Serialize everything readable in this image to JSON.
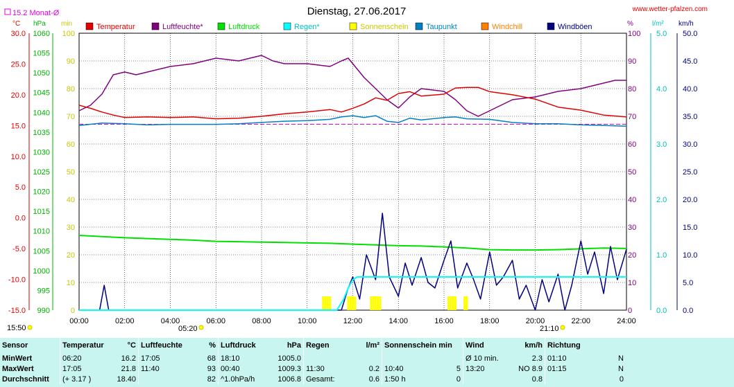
{
  "header": {
    "title": "Dienstag, 27.06.2017",
    "site": "www.wetter-pfalzen.com",
    "monthly_avg": "15.2 Monat-Ø",
    "units_left": [
      "°C",
      "hPa",
      "min"
    ],
    "units_right": [
      "%",
      "l/m²",
      "km/h"
    ],
    "sunrise": "05:20",
    "sunset": "21:10",
    "stamp": "15:50"
  },
  "colors": {
    "temperature": "#e00000",
    "humidity": "#800080",
    "pressure": "#00e000",
    "rain": "#00ffff",
    "sunshine": "#ffff00",
    "dewpoint": "#0080c0",
    "windchill": "#ff8000",
    "gust": "#000080",
    "stats_bg": "#c8f5f0"
  },
  "legend": [
    {
      "label": "Temperatur",
      "color": "#e00000"
    },
    {
      "label": "Luftfeuchte*",
      "color": "#800080"
    },
    {
      "label": "Luftdruck",
      "color": "#00e000"
    },
    {
      "label": "Regen*",
      "color": "#00ffff"
    },
    {
      "label": "Sonnenschein",
      "color": "#ffff00"
    },
    {
      "label": "Taupunkt",
      "color": "#0080c0"
    },
    {
      "label": "Windchill",
      "color": "#ff8000"
    },
    {
      "label": "Windböen",
      "color": "#000080"
    }
  ],
  "chart_data": {
    "type": "line",
    "title": "Dienstag, 27.06.2017",
    "x_ticks": [
      "00:00",
      "02:00",
      "04:00",
      "06:00",
      "08:00",
      "10:00",
      "12:00",
      "14:00",
      "16:00",
      "18:00",
      "20:00",
      "22:00",
      "24:00"
    ],
    "axes": {
      "temp_c": {
        "range": [
          -15,
          30
        ],
        "ticks": [
          "30.0",
          "25.0",
          "20.0",
          "15.0",
          "10.0",
          "5.0",
          "0.0",
          "-5.0",
          "-10.0",
          "-15.0"
        ]
      },
      "pressure_hpa": {
        "range": [
          990,
          1060
        ],
        "ticks": [
          "1060",
          "1055",
          "1050",
          "1045",
          "1040",
          "1035",
          "1030",
          "1025",
          "1020",
          "1015",
          "1010",
          "1005",
          "1000",
          "995",
          "990"
        ]
      },
      "sun_min": {
        "range": [
          0,
          100
        ],
        "ticks": [
          "100",
          "90",
          "80",
          "70",
          "60",
          "50",
          "40",
          "30",
          "20",
          "10",
          "0"
        ]
      },
      "humidity_pct": {
        "range": [
          0,
          100
        ],
        "ticks": [
          "100",
          "90",
          "80",
          "70",
          "60",
          "50",
          "40",
          "30",
          "20",
          "10",
          "0"
        ]
      },
      "rain_lm2": {
        "range": [
          0,
          5
        ],
        "ticks": [
          "5.0",
          "4.0",
          "3.0",
          "2.0",
          "1.0",
          "0.0"
        ]
      },
      "wind_kmh": {
        "range": [
          0,
          50
        ],
        "ticks": [
          "50.0",
          "45.0",
          "40.0",
          "35.0",
          "30.0",
          "25.0",
          "20.0",
          "15.0",
          "10.0",
          "5.0",
          "0.0"
        ]
      }
    },
    "monthly_avg_temp": 15.2,
    "series": [
      {
        "name": "Temperatur",
        "axis": "temp_c",
        "x": [
          0,
          0.5,
          1,
          1.5,
          2,
          3,
          4,
          5,
          6,
          7,
          8,
          9,
          10,
          11,
          11.5,
          12,
          12.5,
          13,
          13.5,
          14,
          14.5,
          15,
          16,
          16.5,
          17,
          17.5,
          18,
          19,
          20,
          21,
          22,
          23,
          24
        ],
        "values": [
          18.3,
          17.8,
          17.2,
          16.7,
          16.3,
          16.4,
          16.3,
          16.4,
          16.1,
          16.2,
          16.5,
          16.9,
          17.2,
          17.6,
          17.2,
          17.8,
          18.5,
          19.5,
          19.1,
          20.2,
          20.5,
          19.8,
          20.1,
          21.1,
          21.2,
          21.2,
          20.5,
          20.0,
          19.3,
          18.0,
          17.5,
          16.7,
          16.4
        ]
      },
      {
        "name": "Luftfeuchte*",
        "axis": "humidity_pct",
        "x": [
          0,
          0.5,
          1,
          1.5,
          2,
          2.5,
          3,
          4,
          5,
          6,
          7,
          8,
          8.5,
          9,
          10,
          11,
          11.5,
          11.8,
          12,
          12.5,
          13,
          13.5,
          14,
          14.5,
          15,
          16,
          16.5,
          17,
          17.5,
          18,
          19,
          20,
          21,
          22,
          23,
          23.5,
          24
        ],
        "values": [
          72,
          74,
          78,
          85,
          86,
          85,
          86,
          88,
          89,
          91,
          90,
          92,
          90,
          89,
          89,
          88,
          90,
          91,
          89,
          84,
          80,
          76,
          73,
          77,
          80,
          79,
          76,
          72,
          70,
          72,
          76,
          77,
          79,
          80,
          82,
          83,
          83
        ]
      },
      {
        "name": "Luftdruck",
        "axis": "pressure_hpa",
        "x": [
          0,
          1,
          2,
          3,
          4,
          5,
          6,
          7,
          8,
          9,
          10,
          11,
          12,
          13,
          14,
          15,
          16,
          17,
          18,
          19,
          20,
          21,
          22,
          23,
          24
        ],
        "values": [
          1008.9,
          1008.6,
          1008.3,
          1008.1,
          1007.9,
          1007.7,
          1007.4,
          1007.3,
          1007.2,
          1007.1,
          1007.0,
          1006.9,
          1006.7,
          1006.5,
          1006.3,
          1006.2,
          1006.0,
          1005.7,
          1005.3,
          1005.2,
          1005.2,
          1005.3,
          1005.5,
          1005.7,
          1005.6
        ]
      },
      {
        "name": "Regen*",
        "axis": "rain_lm2",
        "x": [
          0,
          11.3,
          11.6,
          11.8,
          12,
          12.2,
          12.5,
          13,
          14,
          16,
          18,
          20,
          22,
          24
        ],
        "values": [
          0,
          0,
          0.2,
          0.4,
          0.55,
          0.6,
          0.6,
          0.6,
          0.6,
          0.6,
          0.6,
          0.6,
          0.6,
          0.6
        ]
      },
      {
        "name": "Taupunkt",
        "axis": "temp_c",
        "x": [
          0,
          1,
          2,
          3,
          4,
          5,
          6,
          7,
          8,
          9,
          10,
          11,
          11.5,
          12,
          12.5,
          13,
          13.5,
          14,
          14.5,
          15,
          16,
          16.5,
          17,
          18,
          19,
          20,
          21,
          22,
          23,
          24
        ],
        "values": [
          15.0,
          15.4,
          15.3,
          15.1,
          15.2,
          15.2,
          15.2,
          15.3,
          15.5,
          15.7,
          15.8,
          16.0,
          16.4,
          16.6,
          16.3,
          16.6,
          15.7,
          15.5,
          16.2,
          15.9,
          16.3,
          16.4,
          16.1,
          16.0,
          15.5,
          15.3,
          15.3,
          15.1,
          15.0,
          14.9
        ]
      },
      {
        "name": "Windböen",
        "axis": "wind_kmh",
        "x": [
          0,
          0.9,
          1.1,
          1.3,
          11.5,
          11.8,
          12,
          12.3,
          12.6,
          13,
          13.3,
          13.6,
          14,
          14.3,
          14.6,
          15,
          15.3,
          15.6,
          16,
          16.3,
          16.6,
          17,
          17.3,
          17.6,
          18,
          18.3,
          18.6,
          19,
          19.3,
          19.6,
          20,
          20.3,
          20.6,
          21,
          21.3,
          21.6,
          22,
          22.3,
          22.6,
          23,
          23.3,
          23.6,
          24
        ],
        "values": [
          0,
          0,
          4.5,
          0,
          0,
          4.0,
          6.0,
          2.0,
          10.0,
          5.5,
          17.5,
          6.0,
          2.5,
          8.5,
          4.5,
          9.5,
          5.0,
          4.0,
          9.0,
          12.5,
          4.0,
          8.5,
          5.5,
          2.0,
          10.5,
          4.5,
          6.0,
          9.0,
          2.0,
          4.5,
          0,
          5.5,
          1.5,
          6.5,
          0,
          4.5,
          12.5,
          6.5,
          10.5,
          3.0,
          11.5,
          5.5,
          11.0
        ]
      },
      {
        "name": "Sonnenschein",
        "axis": "sun_min",
        "type": "bar",
        "x": [
          10.7,
          10.8,
          10.9,
          11.0,
          11.8,
          11.9,
          12.0,
          12.1,
          12.8,
          12.9,
          13.0,
          13.1,
          13.2,
          16.2,
          16.3,
          16.4,
          16.5,
          16.9,
          17.0
        ],
        "values": [
          5,
          5,
          5,
          5,
          5,
          5,
          5,
          5,
          5,
          5,
          5,
          5,
          5,
          5,
          5,
          5,
          5,
          5,
          5
        ]
      }
    ]
  },
  "stats": {
    "headers": [
      "Sensor",
      "Temperatur",
      "°C",
      "Luftfeuchte",
      "%",
      "Luftdruck",
      "hPa",
      "Regen",
      "l/m²",
      "Sonnenschein min",
      "Wind",
      "km/h",
      "Richtung"
    ],
    "rows": [
      {
        "label": "MinWert",
        "temp_time": "06:20",
        "temp_val": "16.2",
        "hum_time": "17:05",
        "hum_val": "68",
        "pres_time": "18:10",
        "pres_val": "1005.0",
        "rain_time": "",
        "rain_val": "",
        "sun_time": "",
        "sun_val": "",
        "wind_time": "Ø 10 min.",
        "wind_val": "2.3",
        "dir_time": "01:10",
        "dir_val": "N"
      },
      {
        "label": "MaxWert",
        "temp_time": "17:05",
        "temp_val": "21.8",
        "hum_time": "11:40",
        "hum_val": "93",
        "pres_time": "00:40",
        "pres_val": "1009.3",
        "rain_time": "11:30",
        "rain_val": "0.2",
        "sun_time": "10:40",
        "sun_val": "5",
        "wind_time": "13:20",
        "wind_val": "NO 8.9",
        "dir_time": "01:15",
        "dir_val": "N"
      },
      {
        "label": "Durchschnitt",
        "temp_time": "(+ 3.17 )",
        "temp_val": "18.40",
        "hum_time": "",
        "hum_val": "82",
        "pres_time": "^1.0hPa/h",
        "pres_val": "1006.8",
        "rain_time": "Gesamt:",
        "rain_val": "0.6",
        "sun_time": "1:50 h",
        "sun_val": "0",
        "wind_time": "",
        "wind_val": "0.8",
        "dir_time": "",
        "dir_val": "0"
      }
    ]
  }
}
